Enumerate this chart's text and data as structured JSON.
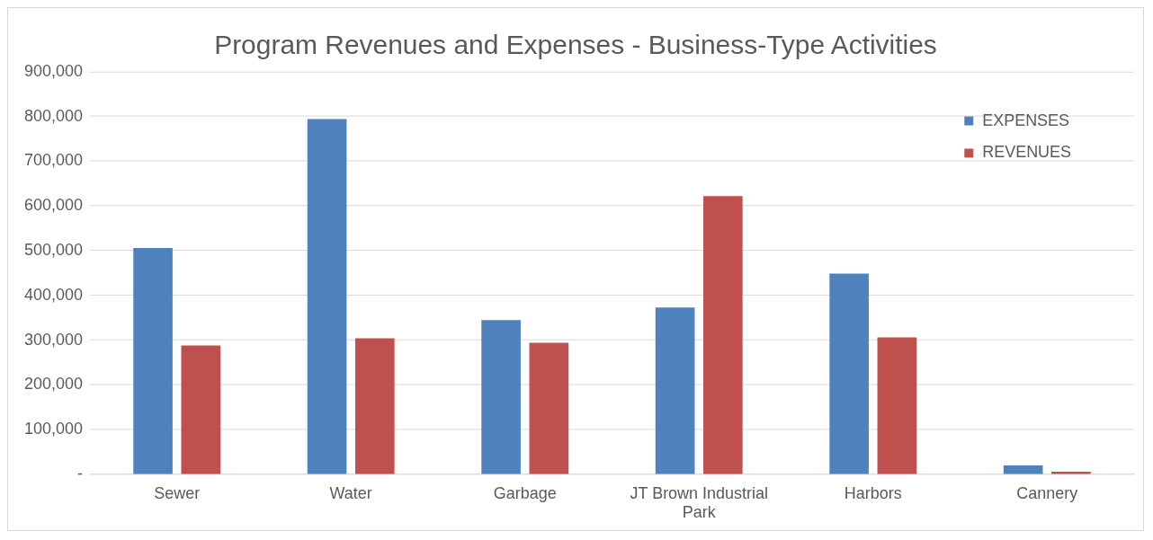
{
  "chart_data": {
    "type": "bar",
    "title": "Program Revenues and Expenses - Business-Type Activities",
    "categories": [
      "Sewer",
      "Water",
      "Garbage",
      "JT Brown Industrial Park",
      "Harbors",
      "Cannery"
    ],
    "series": [
      {
        "name": "EXPENSES",
        "color": "#4f81bd",
        "values": [
          506000,
          794000,
          345000,
          373000,
          449000,
          20000
        ]
      },
      {
        "name": "REVENUES",
        "color": "#c0504d",
        "values": [
          288000,
          304000,
          294000,
          622000,
          306000,
          6000
        ]
      }
    ],
    "ylim": [
      0,
      900000
    ],
    "yticks": [
      {
        "value": 0,
        "label": "-"
      },
      {
        "value": 100000,
        "label": "100,000"
      },
      {
        "value": 200000,
        "label": "200,000"
      },
      {
        "value": 300000,
        "label": "300,000"
      },
      {
        "value": 400000,
        "label": "400,000"
      },
      {
        "value": 500000,
        "label": "500,000"
      },
      {
        "value": 600000,
        "label": "600,000"
      },
      {
        "value": 700000,
        "label": "700,000"
      },
      {
        "value": 800000,
        "label": "800,000"
      },
      {
        "value": 900000,
        "label": "900,000"
      }
    ],
    "grid": "y",
    "legend": "top right"
  }
}
